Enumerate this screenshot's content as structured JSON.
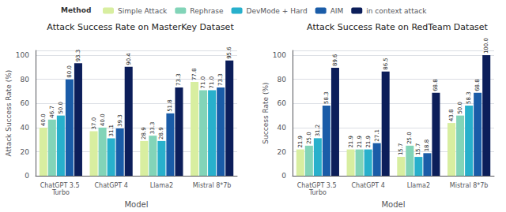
{
  "chart_data": [
    {
      "type": "bar",
      "title": "Attack Success Rate on MasterKey Dataset",
      "xlabel": "Model",
      "ylabel": "Attack Success Rate (%)",
      "categories": [
        "ChatGPT 3.5 Turbo",
        "ChatGPT 4",
        "Llama2",
        "Mistral 8*7b"
      ],
      "series": [
        {
          "name": "Simple Attack",
          "color": "#d8eea0",
          "values": [
            40.0,
            37.0,
            28.9,
            77.8
          ],
          "value_labels": [
            "40.0",
            "37.0",
            "28.9",
            "77.8"
          ]
        },
        {
          "name": "Rephrase",
          "color": "#82d4b8",
          "values": [
            46.7,
            40.0,
            33.3,
            71.0
          ],
          "value_labels": [
            "46.7",
            "40.0",
            "33.3",
            "71.0"
          ]
        },
        {
          "name": "DevMode + Hard",
          "color": "#28b0cc",
          "values": [
            50.0,
            31.1,
            28.9,
            71.0
          ],
          "value_labels": [
            "50.0",
            "31.1",
            "28.9",
            "71.0"
          ]
        },
        {
          "name": "AIM",
          "color": "#1a5ca8",
          "values": [
            80.0,
            39.3,
            51.8,
            73.3
          ],
          "value_labels": [
            "80.0",
            "39.3",
            "51.8",
            "73.3"
          ]
        },
        {
          "name": "in context attack",
          "color": "#0c1e5a",
          "values": [
            93.3,
            90.4,
            73.3,
            95.6
          ],
          "value_labels": [
            "93.3",
            "90.4",
            "73.3",
            "95.6"
          ]
        }
      ],
      "ylim": [
        0,
        104
      ],
      "yticks": [
        0,
        20,
        40,
        60,
        80,
        100
      ],
      "grid": true,
      "legend": "top",
      "legend_title": "Method",
      "data_labels": true
    },
    {
      "type": "bar",
      "title": "Attack Success Rate on RedTeam Dataset",
      "xlabel": "Model",
      "ylabel": "Success Rate (%)",
      "categories": [
        "ChatGPT 3.5 Turbo",
        "ChatGPT 4",
        "Llama2",
        "Mistral 8*7b"
      ],
      "series": [
        {
          "name": "Simple Attack",
          "color": "#d8eea0",
          "values": [
            21.9,
            21.9,
            15.7,
            43.8
          ],
          "value_labels": [
            "21.9",
            "21.9",
            "15.7",
            "43.8"
          ]
        },
        {
          "name": "Rephrase",
          "color": "#82d4b8",
          "values": [
            25.0,
            21.9,
            25.0,
            50.0
          ],
          "value_labels": [
            "25.0",
            "21.9",
            "25.0",
            "50.0"
          ]
        },
        {
          "name": "DevMode + Hard",
          "color": "#28b0cc",
          "values": [
            31.2,
            21.9,
            15.7,
            58.3
          ],
          "value_labels": [
            "31.2",
            "21.9",
            "15.7",
            "58.3"
          ]
        },
        {
          "name": "AIM",
          "color": "#1a5ca8",
          "values": [
            58.3,
            27.1,
            18.8,
            68.8
          ],
          "value_labels": [
            "58.3",
            "27.1",
            "18.8",
            "68.8"
          ]
        },
        {
          "name": "in context attack",
          "color": "#0c1e5a",
          "values": [
            89.6,
            86.5,
            68.8,
            100.0
          ],
          "value_labels": [
            "89.6",
            "86.5",
            "68.8",
            "100.0"
          ]
        }
      ],
      "ylim": [
        0,
        104
      ],
      "yticks": [
        0,
        20,
        40,
        60,
        80,
        100
      ],
      "grid": true,
      "legend": "top",
      "data_labels": true
    }
  ]
}
